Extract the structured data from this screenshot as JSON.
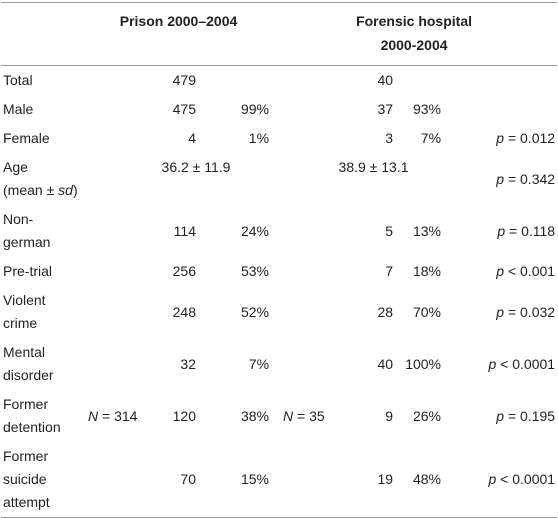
{
  "header": {
    "prison": "Prison 2000–2004",
    "hospital": [
      "Forensic hospital",
      "2000-2004"
    ]
  },
  "rows": [
    {
      "label": [
        "Total"
      ],
      "prison_n": "479",
      "hospital_n": "40"
    },
    {
      "label": [
        "Male"
      ],
      "prison_n": "475",
      "prison_pct": "99%",
      "hospital_n": "37",
      "hospital_pct": "93%"
    },
    {
      "label": [
        "Female"
      ],
      "prison_n": "4",
      "prison_pct": "1%",
      "hospital_n": "3",
      "hospital_pct": "7%",
      "p": [
        {
          "text": "p",
          "italic": true
        },
        {
          "text": " = 0.012"
        }
      ]
    },
    {
      "label": [
        "Age",
        [
          {
            "text": "(mean ± "
          },
          {
            "text": "sd",
            "italic": true
          },
          {
            "text": ")"
          }
        ]
      ],
      "prison_value": "36.2 ± 11.9",
      "hospital_value": "38.9 ± 13.1",
      "p": [
        {
          "text": "p",
          "italic": true
        },
        {
          "text": " = 0.342"
        }
      ]
    },
    {
      "label": [
        "Non-",
        "german"
      ],
      "prison_n": "114",
      "prison_pct": "24%",
      "hospital_n": "5",
      "hospital_pct": "13%",
      "p": [
        {
          "text": "p",
          "italic": true
        },
        {
          "text": " = 0.118"
        }
      ]
    },
    {
      "label": [
        "Pre-trial"
      ],
      "prison_n": "256",
      "prison_pct": "53%",
      "hospital_n": "7",
      "hospital_pct": "18%",
      "p": [
        {
          "text": "p",
          "italic": true
        },
        {
          "text": " < 0.001"
        }
      ]
    },
    {
      "label": [
        "Violent",
        "crime"
      ],
      "prison_n": "248",
      "prison_pct": "52%",
      "hospital_n": "28",
      "hospital_pct": "70%",
      "p": [
        {
          "text": "p",
          "italic": true
        },
        {
          "text": " = 0.032"
        }
      ]
    },
    {
      "label": [
        "Mental",
        "disorder"
      ],
      "prison_n": "32",
      "prison_pct": "7%",
      "hospital_n": "40",
      "hospital_pct": "100%",
      "p": [
        {
          "text": "p",
          "italic": true
        },
        {
          "text": " < 0.0001"
        }
      ]
    },
    {
      "label": [
        "Former",
        "detention"
      ],
      "prison_N": [
        {
          "text": "N",
          "italic": true
        },
        {
          "text": " = 314"
        }
      ],
      "prison_n": "120",
      "prison_pct": "38%",
      "hospital_N": [
        {
          "text": "N",
          "italic": true
        },
        {
          "text": " = 35"
        }
      ],
      "hospital_n": "9",
      "hospital_pct": "26%",
      "p": [
        {
          "text": "p",
          "italic": true
        },
        {
          "text": " = 0.195"
        }
      ]
    },
    {
      "label": [
        "Former",
        "suicide",
        "attempt"
      ],
      "prison_n": "70",
      "prison_pct": "15%",
      "hospital_n": "19",
      "hospital_pct": "48%",
      "p": [
        {
          "text": "p",
          "italic": true
        },
        {
          "text": " < 0.0001"
        }
      ]
    }
  ]
}
